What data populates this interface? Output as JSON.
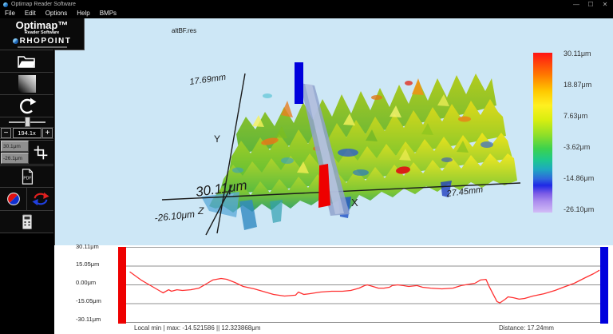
{
  "window": {
    "title": "Optimap Reader Software",
    "minimize": "—",
    "maximize": "☐",
    "close": "✕"
  },
  "menu": {
    "items": [
      "File",
      "Edit",
      "Options",
      "Help",
      "BMPs"
    ]
  },
  "branding": {
    "product": "Optimap™",
    "subtitle": "Reader Software",
    "company": "RHOPOINT"
  },
  "document": {
    "file_label": "altBF.res"
  },
  "sidebar": {
    "zoom_out": "−",
    "zoom_value": "194.1x",
    "zoom_in": "+",
    "range_top": "30.1μm",
    "range_bottom": "-26.1μm",
    "pdf_label": "PDF"
  },
  "surface": {
    "y_extent": "17.69mm",
    "x_extent": "27.45mm",
    "z_max": "30.11μm",
    "z_min": "-26.10μm",
    "x_label": "X",
    "y_label": "Y",
    "z_label": "Z"
  },
  "colorbar": {
    "labels": [
      "30.11μm",
      "18.87μm",
      "7.63μm",
      "-3.62μm",
      "-14.86μm",
      "-26.10μm"
    ],
    "stops": [
      "#ff1414",
      "#ff7a00 14%",
      "#ffc800 24%",
      "#fff020 33%",
      "#d8ee10 42%",
      "#8ade2a 52%",
      "#3cd24e 60%",
      "#1ec88c 67%",
      "#1ea8c0 73%",
      "#2e66dc 79%",
      "#1e28e6 83%",
      "#7a5ae6 88%",
      "#ab8cee 93%",
      "#d2bcf6 100%"
    ],
    "marker_high": "#ee0000",
    "marker_low": "#0000dd"
  },
  "profile": {
    "y_ticks": [
      "30.11μm",
      "15.05μm",
      "0.00μm",
      "-15.05μm",
      "-30.11μm"
    ],
    "stats_label": "Local min | max:  -14.521586 || 12.323868μm",
    "distance_label": "Distance: 17.24mm",
    "x_range_mm": 17.24,
    "curve": [
      [
        0.2,
        10.3
      ],
      [
        0.6,
        3.9
      ],
      [
        1.0,
        -1.3
      ],
      [
        1.3,
        -5.1
      ],
      [
        1.4,
        -6.4
      ],
      [
        1.6,
        -3.9
      ],
      [
        1.7,
        -5.1
      ],
      [
        1.9,
        -3.9
      ],
      [
        2.1,
        -4.5
      ],
      [
        2.4,
        -3.9
      ],
      [
        2.7,
        -2.6
      ],
      [
        3.0,
        1.3
      ],
      [
        3.2,
        3.9
      ],
      [
        3.5,
        5.1
      ],
      [
        3.7,
        4.5
      ],
      [
        4.0,
        1.9
      ],
      [
        4.3,
        -1.3
      ],
      [
        4.7,
        -3.2
      ],
      [
        5.0,
        -5.1
      ],
      [
        5.4,
        -7.7
      ],
      [
        5.8,
        -9.0
      ],
      [
        6.2,
        -8.3
      ],
      [
        6.3,
        -5.8
      ],
      [
        6.5,
        -7.7
      ],
      [
        6.7,
        -7.1
      ],
      [
        7.1,
        -5.8
      ],
      [
        7.5,
        -5.1
      ],
      [
        7.9,
        -5.1
      ],
      [
        8.2,
        -4.5
      ],
      [
        8.5,
        -2.6
      ],
      [
        8.7,
        -0.6
      ],
      [
        8.8,
        0.0
      ],
      [
        9.0,
        -1.3
      ],
      [
        9.2,
        -2.6
      ],
      [
        9.4,
        -2.6
      ],
      [
        9.6,
        -1.9
      ],
      [
        9.7,
        -0.6
      ],
      [
        9.9,
        0.0
      ],
      [
        10.1,
        -0.6
      ],
      [
        10.3,
        -1.3
      ],
      [
        10.6,
        -0.6
      ],
      [
        10.8,
        -1.9
      ],
      [
        11.1,
        -2.6
      ],
      [
        11.5,
        -3.2
      ],
      [
        11.9,
        -2.6
      ],
      [
        12.2,
        -0.6
      ],
      [
        12.5,
        0.6
      ],
      [
        12.7,
        1.3
      ],
      [
        12.9,
        3.9
      ],
      [
        13.1,
        4.4
      ],
      [
        13.2,
        -0.6
      ],
      [
        13.35,
        -7.1
      ],
      [
        13.5,
        -13.4
      ],
      [
        13.6,
        -14.5
      ],
      [
        13.8,
        -11.5
      ],
      [
        13.9,
        -9.6
      ],
      [
        14.1,
        -10.3
      ],
      [
        14.3,
        -11.5
      ],
      [
        14.5,
        -10.9
      ],
      [
        14.8,
        -9.0
      ],
      [
        15.2,
        -7.1
      ],
      [
        15.6,
        -4.5
      ],
      [
        15.9,
        -1.9
      ],
      [
        16.3,
        1.3
      ],
      [
        16.7,
        5.8
      ],
      [
        17.0,
        9.0
      ],
      [
        17.2,
        11.6
      ]
    ]
  }
}
